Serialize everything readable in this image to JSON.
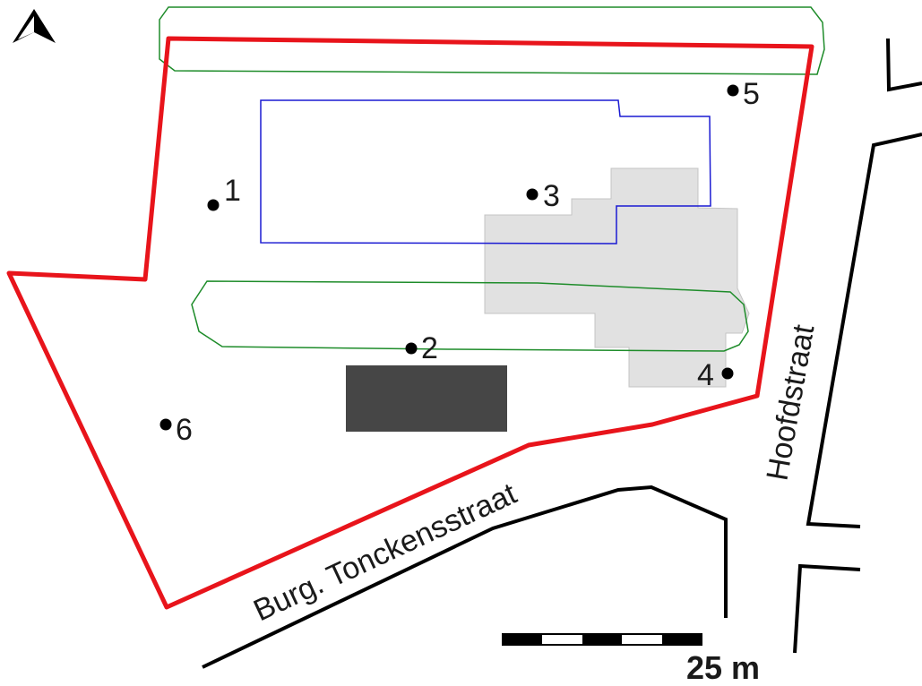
{
  "streets": {
    "hoofdstraat": "Hoofdstraat",
    "tonckensstraat": "Burg. Tonckensstraat"
  },
  "points": [
    {
      "label": "1"
    },
    {
      "label": "2"
    },
    {
      "label": "3"
    },
    {
      "label": "4"
    },
    {
      "label": "5"
    },
    {
      "label": "6"
    }
  ],
  "scale_bar": {
    "label": "25 m"
  },
  "north_arrow": {
    "icon": "north-arrow-icon"
  },
  "colors": {
    "site_boundary": "#e8141b",
    "green_zone": "#1e8c2a",
    "blue_zone": "#1a1ad2",
    "existing_building": "#e1e1e1",
    "dark_building": "#464646",
    "road_edge": "#000000"
  }
}
